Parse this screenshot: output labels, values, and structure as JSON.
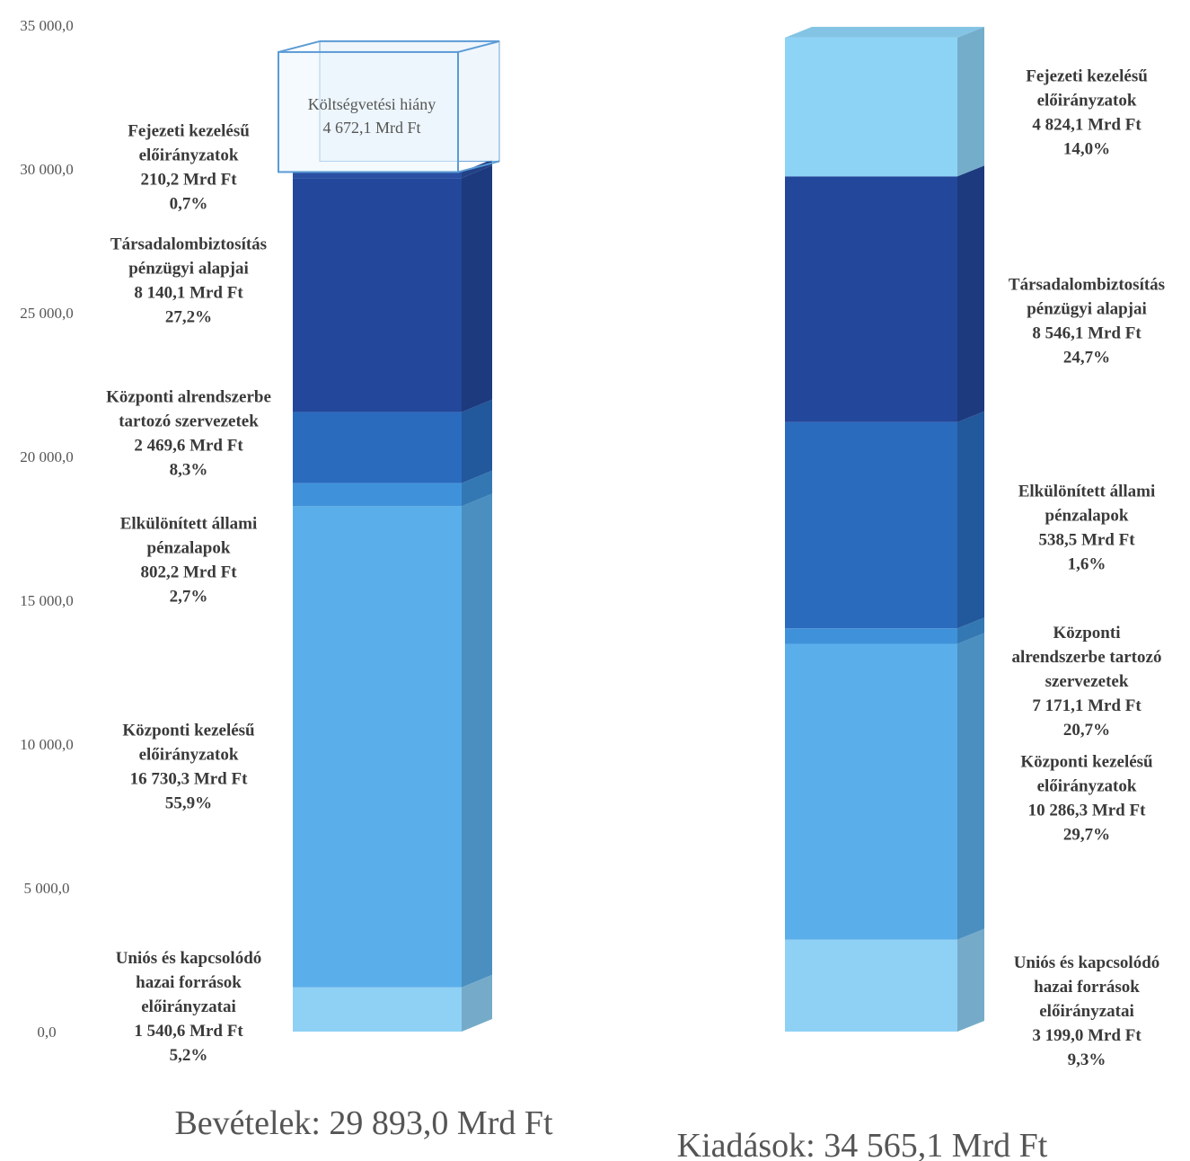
{
  "chart_data": {
    "type": "bar",
    "stacked": true,
    "ylim": [
      0,
      35000
    ],
    "ytick_labels": [
      "0,0",
      "5 000,0",
      "10 000,0",
      "15 000,0",
      "20 000,0",
      "25 000,0",
      "30 000,0",
      "35 000,0"
    ],
    "yticks": [
      0,
      5000,
      10000,
      15000,
      20000,
      25000,
      30000,
      35000
    ],
    "grid": false,
    "colors": {
      "unios": "#8fd0f5",
      "kozponti_kezelesu": "#5aaeea",
      "elkulonitett": "#3f92da",
      "kozponti_alrendszer": "#2a6bbe",
      "tarsadalombiztositas": "#23479a",
      "fejezeti_bev": "#2a4fa3",
      "fejezeti_kiad": "#8dd3f6",
      "hiany_outline": "#5b9bd5"
    },
    "bars": [
      {
        "caption": "Bevételek: 29 893,0 Mrd Ft",
        "segments": [
          {
            "key": "unios",
            "value": 1540.6,
            "lines": [
              "Uniós és kapcsolódó",
              "hazai források",
              "előirányzatai",
              "1 540,6 Mrd Ft",
              "5,2%"
            ]
          },
          {
            "key": "kozponti_kezelesu",
            "value": 16730.3,
            "lines": [
              "Központi kezelésű",
              "előirányzatok",
              "16 730,3 Mrd Ft",
              "55,9%"
            ]
          },
          {
            "key": "elkulonitett",
            "value": 802.2,
            "lines": [
              "Elkülönített állami",
              "pénzalapok",
              "802,2 Mrd Ft",
              "2,7%"
            ]
          },
          {
            "key": "kozponti_alrendszer",
            "value": 2469.6,
            "lines": [
              "Központi alrendszerbe",
              "tartozó szervezetek",
              "2 469,6 Mrd Ft",
              "8,3%"
            ]
          },
          {
            "key": "tarsadalombiztositas",
            "value": 8140.1,
            "lines": [
              "Társadalombiztosítás",
              "pénzügyi alapjai",
              "8 140,1 Mrd Ft",
              "27,2%"
            ]
          },
          {
            "key": "fejezeti_bev",
            "value": 210.2,
            "lines": [
              "Fejezeti kezelésű",
              "előirányzatok",
              "210,2 Mrd Ft",
              "0,7%"
            ]
          }
        ],
        "deficit": {
          "value": 4672.1,
          "lines": [
            "Költségvetési hiány",
            "4 672,1 Mrd Ft"
          ]
        }
      },
      {
        "caption": "Kiadások: 34 565,1 Mrd Ft",
        "segments": [
          {
            "key": "unios",
            "value": 3199.0,
            "lines": [
              "Uniós és kapcsolódó",
              "hazai források",
              "előirányzatai",
              "3 199,0 Mrd Ft",
              "9,3%"
            ]
          },
          {
            "key": "kozponti_kezelesu",
            "value": 10286.3,
            "lines": [
              "Központi kezelésű",
              "előirányzatok",
              "10 286,3 Mrd Ft",
              "29,7%"
            ]
          },
          {
            "key": "elkulonitett",
            "value": 538.5,
            "lines": [
              "Elkülönített állami",
              "pénzalapok",
              "538,5 Mrd Ft",
              "1,6%"
            ]
          },
          {
            "key": "kozponti_alrendszer",
            "value": 7171.1,
            "lines": [
              "Központi",
              "alrendszerbe tartozó",
              "szervezetek",
              "7 171,1 Mrd Ft",
              "20,7%"
            ]
          },
          {
            "key": "tarsadalombiztositas",
            "value": 8546.1,
            "lines": [
              "Társadalombiztosítás",
              "pénzügyi alapjai",
              "8 546,1 Mrd Ft",
              "24,7%"
            ]
          },
          {
            "key": "fejezeti_kiad",
            "value": 4824.1,
            "lines": [
              "Fejezeti kezelésű",
              "előirányzatok",
              "4 824,1 Mrd Ft",
              "14,0%"
            ]
          }
        ]
      }
    ]
  }
}
